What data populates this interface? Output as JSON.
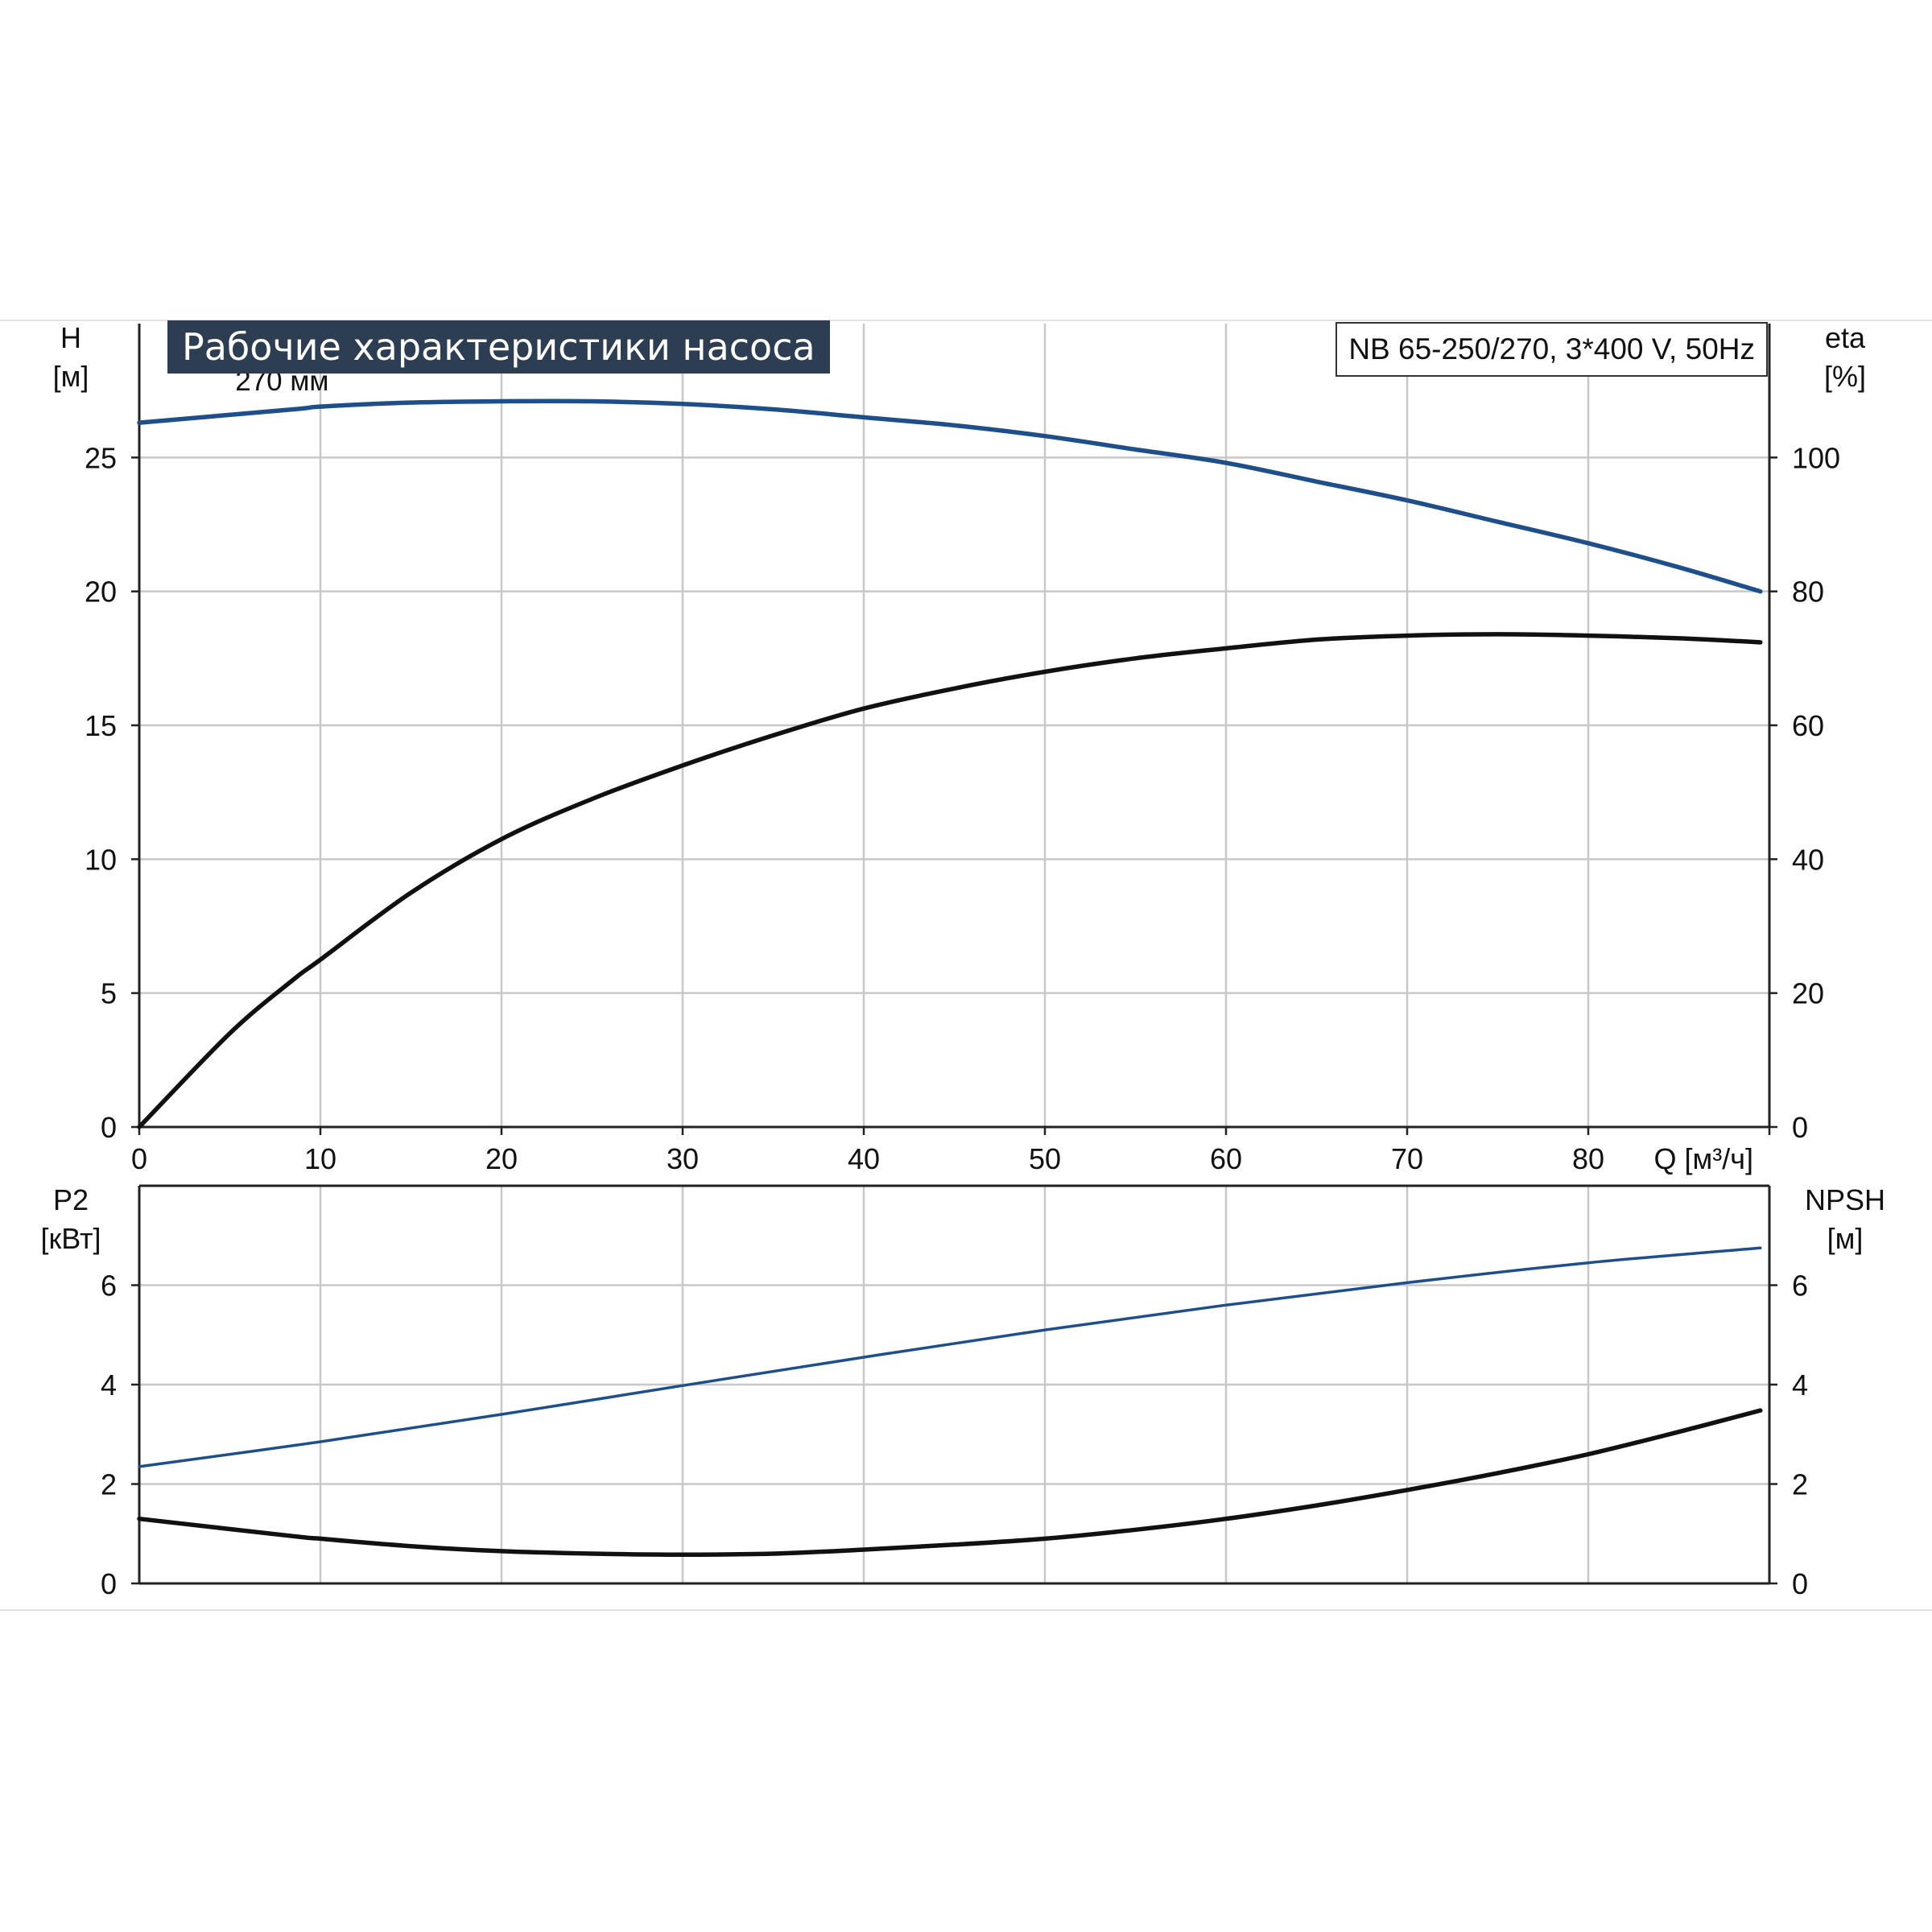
{
  "header": {
    "title": "Рабочие характеристики насоса",
    "model": "NB 65-250/270, 3*400 V, 50Hz"
  },
  "colors": {
    "head_curve": "#1f4f8a",
    "eta_curve": "#111111",
    "p2_curve": "#1f4f8a",
    "npsh_curve": "#111111",
    "grid": "#c8c8c8",
    "axis": "#222222",
    "title_bg": "#2e3e52"
  },
  "chart_data": [
    {
      "type": "line",
      "x_axis": {
        "label": "Q [м³/ч]",
        "range": [
          0,
          90
        ],
        "ticks": [
          "0",
          "10",
          "20",
          "30",
          "40",
          "50",
          "60",
          "70",
          "80"
        ]
      },
      "y_left": {
        "label": "H",
        "unit": "[м]",
        "range": [
          0,
          30
        ],
        "ticks": [
          "0",
          "5",
          "10",
          "15",
          "20",
          "25"
        ]
      },
      "y_right": {
        "label": "eta",
        "unit": "[%]",
        "range": [
          0,
          120
        ],
        "ticks": [
          "0",
          "20",
          "40",
          "60",
          "80",
          "100"
        ]
      },
      "grid": true,
      "annotation": "270 мм",
      "series": [
        {
          "axis": "left",
          "color": "head",
          "x": [
            0,
            8.5,
            10,
            15,
            20,
            25,
            30,
            35,
            40,
            45,
            50,
            55,
            60,
            65,
            70,
            75,
            80,
            85,
            89.5
          ],
          "y": [
            26.3,
            26.8,
            26.9,
            27.05,
            27.1,
            27.1,
            27.0,
            26.8,
            26.5,
            26.2,
            25.8,
            25.3,
            24.8,
            24.1,
            23.4,
            22.6,
            21.8,
            20.9,
            20.0
          ]
        },
        {
          "axis": "right",
          "color": "eta",
          "x": [
            0,
            5,
            8.5,
            10,
            15,
            20,
            25,
            30,
            35,
            40,
            45,
            50,
            55,
            60,
            65,
            70,
            75,
            80,
            85,
            89.5
          ],
          "y": [
            0,
            14,
            22,
            25,
            35,
            43,
            49,
            54,
            58.5,
            62.5,
            65.5,
            68,
            70,
            71.5,
            72.8,
            73.4,
            73.6,
            73.4,
            73,
            72.4
          ]
        }
      ]
    },
    {
      "type": "line",
      "x_axis": {
        "range": [
          0,
          90
        ],
        "ticks": []
      },
      "y_left": {
        "label": "P2",
        "unit": "[кВт]",
        "range": [
          0,
          8
        ],
        "ticks": [
          "0",
          "2",
          "4",
          "6"
        ]
      },
      "y_right": {
        "label": "NPSH",
        "unit": "[м]",
        "range": [
          0,
          8
        ],
        "ticks": [
          "0",
          "2",
          "4",
          "6"
        ]
      },
      "grid": true,
      "series": [
        {
          "axis": "left",
          "color": "p2",
          "x": [
            0,
            10,
            20,
            30,
            40,
            50,
            60,
            70,
            80,
            89.5
          ],
          "y": [
            2.35,
            2.85,
            3.4,
            3.98,
            4.55,
            5.1,
            5.6,
            6.05,
            6.45,
            6.75
          ]
        },
        {
          "axis": "right",
          "color": "npsh",
          "x": [
            0,
            8.5,
            10,
            15,
            20,
            25,
            30,
            35,
            40,
            45,
            50,
            55,
            60,
            65,
            70,
            75,
            80,
            85,
            89.5
          ],
          "y": [
            1.3,
            0.95,
            0.9,
            0.75,
            0.65,
            0.6,
            0.58,
            0.6,
            0.68,
            0.78,
            0.9,
            1.08,
            1.3,
            1.57,
            1.88,
            2.22,
            2.6,
            3.05,
            3.48
          ]
        }
      ]
    }
  ]
}
